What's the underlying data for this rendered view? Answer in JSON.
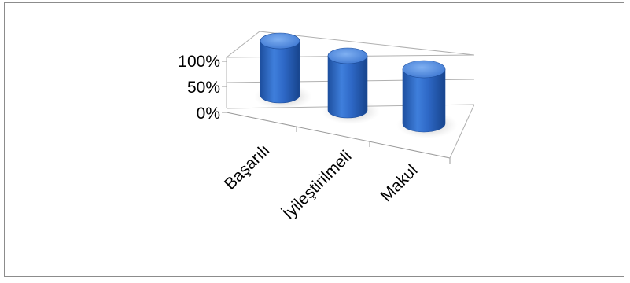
{
  "chart_data": {
    "type": "bar",
    "subtype": "3d-cylinder",
    "categories": [
      "Başarılı",
      "İyileştirilmeli",
      "Makul"
    ],
    "series": [
      {
        "values": [
          100,
          100,
          100
        ]
      }
    ],
    "y_ticks": [
      "100%",
      "50%",
      "0%"
    ],
    "ylim": [
      0,
      100
    ],
    "y_unit": "%",
    "grid": true,
    "legend": "none",
    "colors": {
      "bar_top": "#5b8fe0",
      "bar_body": "#2f66c2",
      "bar_edge": "#1e4f9e",
      "grid": "#b0b0b0",
      "axis": "#9a9a9a"
    }
  }
}
